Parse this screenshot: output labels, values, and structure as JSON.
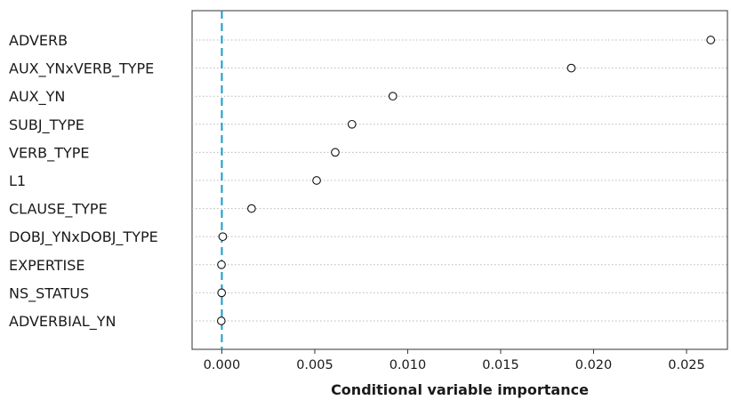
{
  "chart_data": {
    "type": "scatter",
    "title": "",
    "xlabel": "Conditional variable importance",
    "ylabel": "",
    "xlim": [
      -0.0016,
      0.0272
    ],
    "xticks": [
      0.0,
      0.005,
      0.01,
      0.015,
      0.02,
      0.025
    ],
    "xtick_labels": [
      "0.000",
      "0.005",
      "0.010",
      "0.015",
      "0.020",
      "0.025"
    ],
    "reference_line": {
      "x": 0.0,
      "style": "dashed",
      "color": "#1a9ac9"
    },
    "grid": "horizontal-dotted",
    "point_style": "open-circle",
    "categories": [
      "ADVERB",
      "AUX_YNxVERB_TYPE",
      "AUX_YN",
      "SUBJ_TYPE",
      "VERB_TYPE",
      "L1",
      "CLAUSE_TYPE",
      "DOBJ_YNxDOBJ_TYPE",
      "EXPERTISE",
      "NS_STATUS",
      "ADVERBIAL_YN"
    ],
    "values": [
      0.0263,
      0.0188,
      0.0092,
      0.007,
      0.0061,
      0.0051,
      0.0016,
      5e-05,
      -2e-05,
      -1e-05,
      -3e-05
    ]
  }
}
